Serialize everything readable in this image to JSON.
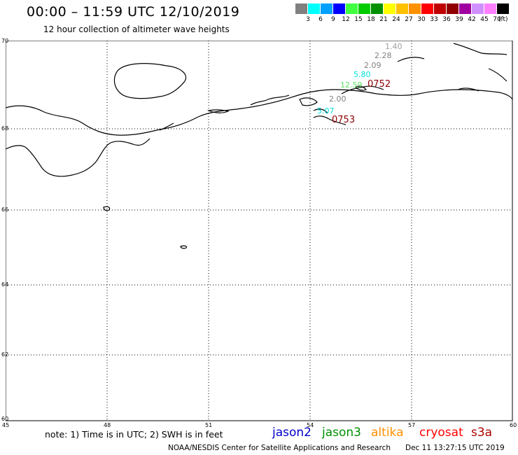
{
  "header": {
    "title": "00:00 – 11:59 UTC 12/10/2019",
    "subtitle": "12 hour collection of altimeter wave heights"
  },
  "scale": {
    "colors": [
      "#808080",
      "#00ffff",
      "#00a0ff",
      "#0000ff",
      "#40ff40",
      "#00cc00",
      "#009000",
      "#ffff00",
      "#ffc000",
      "#ff9000",
      "#ff0000",
      "#c00000",
      "#900000",
      "#a000a0",
      "#d090ff",
      "#ff80ff",
      "#000000"
    ],
    "labels": [
      "3",
      "6",
      "9",
      "12",
      "15",
      "18",
      "21",
      "24",
      "27",
      "30",
      "33",
      "36",
      "39",
      "42",
      "45",
      "70",
      "(ft)"
    ]
  },
  "axes": {
    "y_labels": [
      "70",
      "68",
      "66",
      "64",
      "62",
      "60"
    ],
    "x_labels": [
      "45",
      "48",
      "51",
      "54",
      "57",
      "60"
    ]
  },
  "observations": [
    {
      "text": "1.40",
      "color": "#a0a0a0"
    },
    {
      "text": "2.28",
      "color": "#808080"
    },
    {
      "text": "2.09",
      "color": "#808080"
    },
    {
      "text": "5.80",
      "color": "#00e0e0"
    },
    {
      "text": "12.59",
      "color": "#60e060"
    },
    {
      "text": "0752",
      "color": "#8b0000"
    },
    {
      "text": "2.00",
      "color": "#808080"
    },
    {
      "text": "5.07",
      "color": "#00e0e0"
    },
    {
      "text": "0753",
      "color": "#8b0000"
    }
  ],
  "footer": {
    "note": "note: 1) Time is in UTC; 2) SWH is in feet",
    "satellites": [
      {
        "name": "jason2",
        "color": "#0000cc"
      },
      {
        "name": "jason3",
        "color": "#009000"
      },
      {
        "name": "altika",
        "color": "#ff9000"
      },
      {
        "name": "cryosat",
        "color": "#ff0000"
      },
      {
        "name": "s3a",
        "color": "#b00000"
      }
    ],
    "credit": "NOAA/NESDIS Center for Satellite Applications and Research",
    "timestamp": "Dec 11 13:27:15 UTC 2019"
  }
}
